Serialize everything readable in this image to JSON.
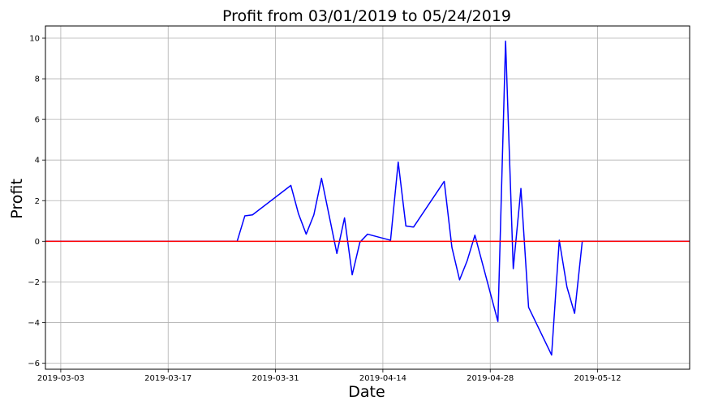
{
  "chart_data": {
    "type": "line",
    "title": "Profit from 03/01/2019 to 05/24/2019",
    "xlabel": "Date",
    "ylabel": "Profit",
    "xlim": [
      "2019-03-01",
      "2019-05-24"
    ],
    "ylim": [
      -6.3,
      10.6
    ],
    "x_ticks": [
      "2019-03-03",
      "2019-03-17",
      "2019-03-31",
      "2019-04-14",
      "2019-04-28",
      "2019-05-12"
    ],
    "y_ticks": [
      -6,
      -4,
      -2,
      0,
      2,
      4,
      6,
      8,
      10
    ],
    "y_tick_labels": [
      "−6",
      "−4",
      "−2",
      "0",
      "2",
      "4",
      "6",
      "8",
      "10"
    ],
    "grid": true,
    "series": [
      {
        "color": "#0000ff",
        "x": [
          "2019-03-01",
          "2019-03-02",
          "2019-03-03",
          "2019-03-04",
          "2019-03-05",
          "2019-03-06",
          "2019-03-07",
          "2019-03-08",
          "2019-03-09",
          "2019-03-10",
          "2019-03-11",
          "2019-03-12",
          "2019-03-13",
          "2019-03-14",
          "2019-03-15",
          "2019-03-16",
          "2019-03-17",
          "2019-03-18",
          "2019-03-19",
          "2019-03-20",
          "2019-03-21",
          "2019-03-22",
          "2019-03-23",
          "2019-03-24",
          "2019-03-25",
          "2019-03-26",
          "2019-03-27",
          "2019-03-28",
          "2019-04-02",
          "2019-04-03",
          "2019-04-04",
          "2019-04-05",
          "2019-04-06",
          "2019-04-08",
          "2019-04-09",
          "2019-04-10",
          "2019-04-11",
          "2019-04-12",
          "2019-04-15",
          "2019-04-16",
          "2019-04-17",
          "2019-04-18",
          "2019-04-22",
          "2019-04-23",
          "2019-04-24",
          "2019-04-25",
          "2019-04-26",
          "2019-04-29",
          "2019-04-30",
          "2019-05-01",
          "2019-05-02",
          "2019-05-03",
          "2019-05-06",
          "2019-05-07",
          "2019-05-08",
          "2019-05-09",
          "2019-05-10",
          "2019-05-11",
          "2019-05-12",
          "2019-05-13",
          "2019-05-14",
          "2019-05-15",
          "2019-05-16",
          "2019-05-17",
          "2019-05-18",
          "2019-05-19",
          "2019-05-20",
          "2019-05-21",
          "2019-05-22",
          "2019-05-23",
          "2019-05-24"
        ],
        "y": [
          0,
          0,
          0,
          0,
          0,
          0,
          0,
          0,
          0,
          0,
          0,
          0,
          0,
          0,
          0,
          0,
          0,
          0,
          0,
          0,
          0,
          0,
          0,
          0,
          0,
          0,
          1.25,
          1.3,
          2.75,
          1.35,
          0.35,
          1.3,
          3.1,
          -0.6,
          1.15,
          -1.65,
          -0.05,
          0.35,
          0.05,
          3.9,
          0.75,
          0.7,
          2.95,
          -0.3,
          -1.9,
          -0.95,
          0.3,
          -3.95,
          9.85,
          -1.35,
          2.6,
          -3.25,
          -5.6,
          0.05,
          -2.25,
          -3.55,
          0,
          0,
          0,
          0,
          0,
          0,
          0,
          0,
          0,
          0,
          0,
          0,
          0,
          0,
          0
        ]
      }
    ],
    "reference_line": {
      "y": 0,
      "color": "#ff0000"
    }
  }
}
